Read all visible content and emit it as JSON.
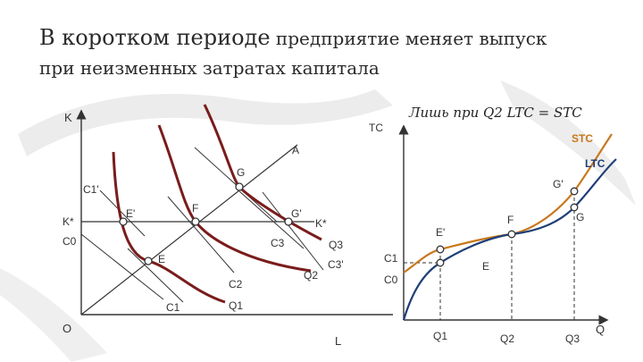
{
  "slide": {
    "title_part1": "В коротком периоде",
    "title_part2": " предприятие меняет выпуск",
    "title_line2": "при неизменных затратах капитала"
  },
  "left_chart": {
    "axis_y": "K",
    "axis_x": "L",
    "origin": "O",
    "labels": {
      "A": "A",
      "G": "G",
      "C1p": "C1'",
      "Ep": "E'",
      "F": "F",
      "Gp": "G'",
      "Kstar_left": "K*",
      "Kstar_right": "K*",
      "C0": "C0",
      "C3": "C3",
      "Q3": "Q3",
      "C3p": "C3'",
      "E": "E",
      "Q2": "Q2",
      "C2": "C2",
      "C1": "C1",
      "Q1": "Q1"
    }
  },
  "right_chart": {
    "axis_y": "TC",
    "axis_x": "Q",
    "heading": "Лишь при Q2 LTC = STC",
    "labels": {
      "STC": "STC",
      "LTC": "LTC",
      "Gp": "G'",
      "G": "G",
      "F": "F",
      "Ep": "E'",
      "E": "E",
      "C1": "C1",
      "C0": "C0",
      "Q1": "Q1",
      "Q2": "Q2",
      "Q3": "Q3"
    }
  },
  "colors": {
    "isoquant": "#7a1c1c",
    "stc": "#c8781e",
    "ltc": "#1f3f77",
    "lines": "#333333"
  }
}
